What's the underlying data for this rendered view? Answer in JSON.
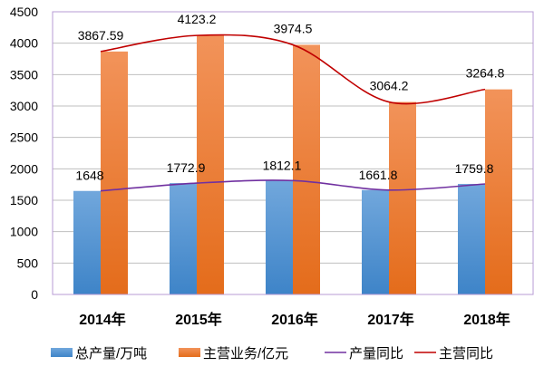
{
  "chart_data": {
    "type": "bar",
    "title": "",
    "xlabel": "",
    "ylabel": "",
    "ylim": [
      0,
      4500
    ],
    "yticks": [
      "0",
      "500",
      "1000",
      "1500",
      "2000",
      "2500",
      "3000",
      "3500",
      "4000",
      "4500"
    ],
    "grid": true,
    "legend_position": "bottom",
    "categories": [
      "2014年",
      "2015年",
      "2016年",
      "2017年",
      "2018年"
    ],
    "series": [
      {
        "name": "总产量/万吨",
        "kind": "bar",
        "color": "#5B9BD5",
        "values": [
          1648,
          1772.9,
          1812.1,
          1661.8,
          1759.8
        ],
        "labels": [
          "1648",
          "1772.9",
          "1812.1",
          "1661.8",
          "1759.8"
        ]
      },
      {
        "name": "主营业务/亿元",
        "kind": "bar",
        "color": "#ED7D31",
        "values": [
          3867.59,
          4123.2,
          3974.5,
          3064.2,
          3264.8
        ],
        "labels": [
          "3867.59",
          "4123.2",
          "3974.5",
          "3064.2",
          "3264.8"
        ]
      },
      {
        "name": "产量同比",
        "kind": "line",
        "color": "#7030A0",
        "values": [
          1648,
          1772.9,
          1812.1,
          1661.8,
          1759.8
        ]
      },
      {
        "name": "主营同比",
        "kind": "line",
        "color": "#C00000",
        "values": [
          3867.59,
          4123.2,
          3974.5,
          3064.2,
          3264.8
        ]
      }
    ]
  }
}
